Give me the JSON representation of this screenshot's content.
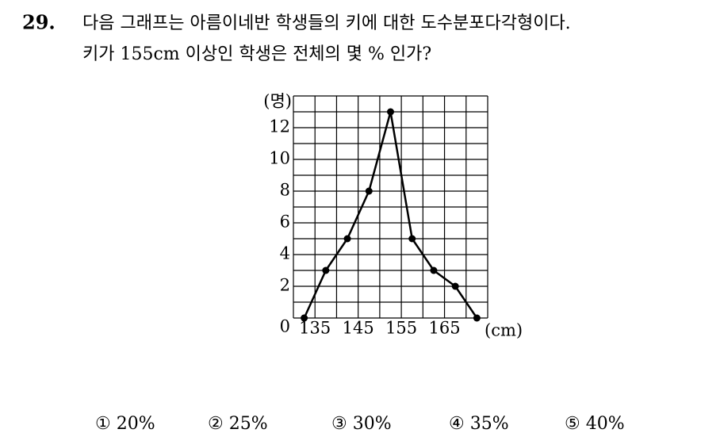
{
  "question": {
    "number": "29.",
    "lines": [
      "다음 그래프는 아름이네반 학생들의 키에 대한 도수분포다각형이다.",
      "키가 155cm 이상인 학생은 전체의 몇 % 인가?"
    ]
  },
  "chart_data": {
    "type": "line",
    "y_label": "(명)",
    "x_label": "(cm)",
    "x": [
      132.5,
      137.5,
      142.5,
      147.5,
      152.5,
      157.5,
      162.5,
      167.5,
      172.5
    ],
    "values": [
      0,
      3,
      5,
      8,
      13,
      5,
      3,
      2,
      0
    ],
    "color": "#000000",
    "xlim": [
      130,
      175
    ],
    "ylim": [
      0,
      14
    ],
    "xticks": [
      135,
      145,
      155,
      165
    ],
    "yticks": [
      0,
      2,
      4,
      6,
      8,
      10,
      12
    ],
    "grid": true
  },
  "choices": [
    "① 20%",
    "② 25%",
    "③ 30%",
    "④ 35%",
    "⑤ 40%"
  ]
}
